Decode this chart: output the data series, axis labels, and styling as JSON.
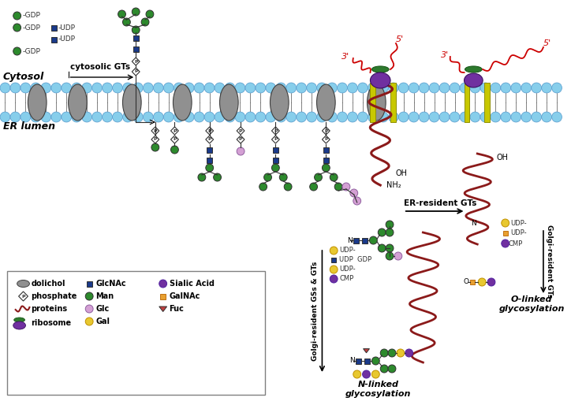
{
  "colors": {
    "GlcNAc": "#1a3a8a",
    "Man": "#2d8a2d",
    "Glc": "#d4a0d4",
    "Gal": "#e8c830",
    "GalNAc": "#e8a030",
    "SialicAcid": "#7030a0",
    "Fuc": "#c04040",
    "dolichol_fill": "#808080",
    "dolichol_edge": "#404040",
    "membrane_lipid": "#87ceeb",
    "protein_color": "#8b1a1a",
    "ribosome_purple": "#7030a0",
    "ribosome_green": "#2d7a2d",
    "golgi_yellow": "#c8c800",
    "mrna_red": "#cc0000"
  },
  "labels": {
    "cytosol": "Cytosol",
    "ER_lumen": "ER lumen",
    "cytosolic_GTs": "cytosolic GTs",
    "ER_resident_GTs": "ER-resident GTs",
    "Golgi_GSs_GTs": "Golgi-resident GSs & GTs",
    "Golgi_GTs": "Golgi-resident GTs",
    "N_linked_line1": "N-linked",
    "N_linked_line2": "glycosylation",
    "O_linked_line1": "O-linked",
    "O_linked_line2": "glycosylation"
  }
}
